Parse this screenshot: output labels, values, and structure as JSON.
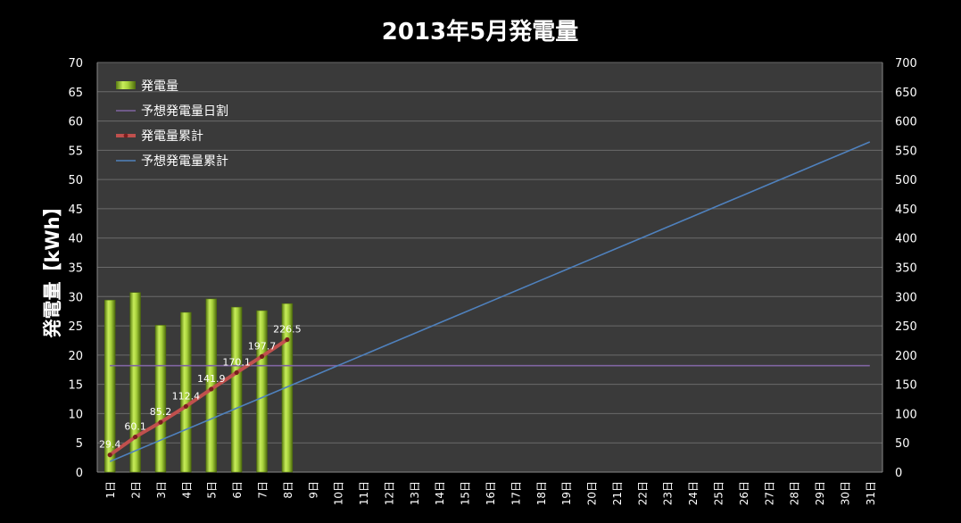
{
  "chart_data": {
    "type": "bar",
    "title": "2013年5月発電量",
    "ylabel": "発電量【kWh】",
    "ylim": [
      0,
      70
    ],
    "y2lim": [
      0,
      700
    ],
    "y_ticks": [
      0,
      5,
      10,
      15,
      20,
      25,
      30,
      35,
      40,
      45,
      50,
      55,
      60,
      65,
      70
    ],
    "y2_ticks": [
      0,
      50,
      100,
      150,
      200,
      250,
      300,
      350,
      400,
      450,
      500,
      550,
      600,
      650,
      700
    ],
    "categories": [
      "1日",
      "2日",
      "3日",
      "4日",
      "5日",
      "6日",
      "7日",
      "8日",
      "9日",
      "10日",
      "11日",
      "12日",
      "13日",
      "14日",
      "15日",
      "16日",
      "17日",
      "18日",
      "19日",
      "20日",
      "21日",
      "22日",
      "23日",
      "24日",
      "25日",
      "26日",
      "27日",
      "28日",
      "29日",
      "30日",
      "31日"
    ],
    "legend_position": "top-left",
    "grid": true,
    "series": [
      {
        "name": "発電量",
        "type": "bar",
        "axis": "left",
        "color": "#9acd32",
        "values": [
          29.4,
          30.7,
          25.1,
          27.3,
          29.6,
          28.2,
          27.6,
          28.8,
          null,
          null,
          null,
          null,
          null,
          null,
          null,
          null,
          null,
          null,
          null,
          null,
          null,
          null,
          null,
          null,
          null,
          null,
          null,
          null,
          null,
          null,
          null
        ]
      },
      {
        "name": "予想発電量日割",
        "type": "line",
        "axis": "left",
        "color": "#8064a2",
        "values": [
          18.2,
          18.2,
          18.2,
          18.2,
          18.2,
          18.2,
          18.2,
          18.2,
          18.2,
          18.2,
          18.2,
          18.2,
          18.2,
          18.2,
          18.2,
          18.2,
          18.2,
          18.2,
          18.2,
          18.2,
          18.2,
          18.2,
          18.2,
          18.2,
          18.2,
          18.2,
          18.2,
          18.2,
          18.2,
          18.2,
          18.2
        ]
      },
      {
        "name": "発電量累計",
        "type": "line",
        "axis": "right",
        "color": "#c0504d",
        "values": [
          29.4,
          60.1,
          85.2,
          112.4,
          141.9,
          170.1,
          197.7,
          226.5,
          null,
          null,
          null,
          null,
          null,
          null,
          null,
          null,
          null,
          null,
          null,
          null,
          null,
          null,
          null,
          null,
          null,
          null,
          null,
          null,
          null,
          null,
          null
        ],
        "data_labels": [
          "29.4",
          "60.1",
          "85.2",
          "112.4",
          "141.9",
          "170.1",
          "197.7",
          "226.5"
        ]
      },
      {
        "name": "予想発電量累計",
        "type": "line",
        "axis": "right",
        "color": "#4f81bd",
        "values": [
          18.2,
          36.4,
          54.6,
          72.8,
          91,
          109.2,
          127.4,
          145.6,
          163.8,
          182,
          200.2,
          218.4,
          236.6,
          254.8,
          273,
          291.2,
          309.4,
          327.6,
          345.8,
          364,
          382.2,
          400.4,
          418.6,
          436.8,
          455,
          473.2,
          491.4,
          509.6,
          527.8,
          546,
          564.2
        ]
      }
    ]
  }
}
